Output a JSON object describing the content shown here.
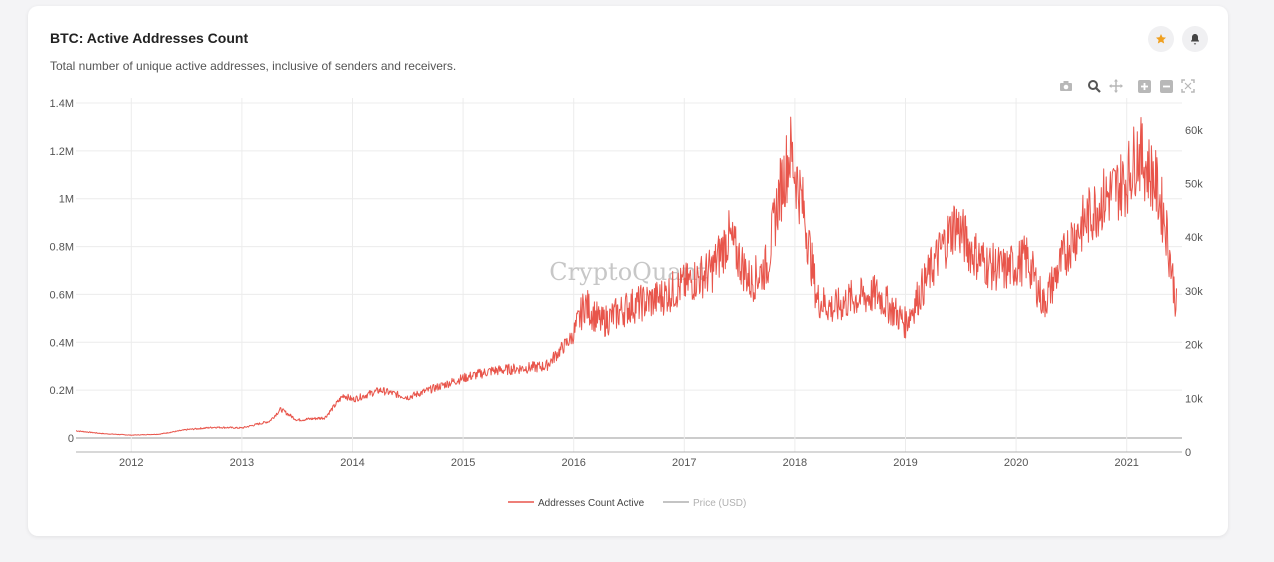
{
  "card": {
    "title": "BTC: Active Addresses Count",
    "subtitle": "Total number of unique active addresses, inclusive of senders and receivers."
  },
  "icons": {
    "star": "star-icon",
    "bell": "bell-icon",
    "modebar": [
      "camera-icon",
      "zoom-icon",
      "pan-icon",
      "zoom-in-icon",
      "zoom-out-icon",
      "autoscale-icon"
    ]
  },
  "colors": {
    "series": "#e8554b",
    "price": "#b0b0b0",
    "star": "#f0a020",
    "grid": "#ececec"
  },
  "watermark": "CryptoQuant",
  "chart_data": {
    "type": "line",
    "title": "BTC: Active Addresses Count",
    "xlabel": "",
    "ylabel": "",
    "x_ticks": [
      "2012",
      "2013",
      "2014",
      "2015",
      "2016",
      "2017",
      "2018",
      "2019",
      "2020",
      "2021"
    ],
    "y_ticks_left": [
      "0",
      "0.2M",
      "0.4M",
      "0.6M",
      "0.8M",
      "1M",
      "1.2M",
      "1.4M"
    ],
    "y_ticks_right": [
      "0",
      "10k",
      "20k",
      "30k",
      "40k",
      "50k",
      "60k"
    ],
    "ylim_left": [
      0,
      1400000
    ],
    "ylim_right": [
      0,
      65000
    ],
    "xlim": [
      2011.5,
      2021.5
    ],
    "grid": true,
    "legend_position": "bottom-center",
    "series": [
      {
        "name": "Addresses Count Active",
        "axis": "left",
        "points": [
          [
            2011.5,
            30000
          ],
          [
            2011.75,
            18000
          ],
          [
            2012.0,
            12000
          ],
          [
            2012.25,
            16000
          ],
          [
            2012.5,
            35000
          ],
          [
            2012.75,
            45000
          ],
          [
            2013.0,
            42000
          ],
          [
            2013.25,
            70000
          ],
          [
            2013.35,
            120000
          ],
          [
            2013.5,
            75000
          ],
          [
            2013.75,
            85000
          ],
          [
            2013.92,
            180000
          ],
          [
            2014.0,
            160000
          ],
          [
            2014.25,
            200000
          ],
          [
            2014.5,
            170000
          ],
          [
            2014.75,
            210000
          ],
          [
            2015.0,
            250000
          ],
          [
            2015.25,
            280000
          ],
          [
            2015.5,
            290000
          ],
          [
            2015.75,
            300000
          ],
          [
            2016.0,
            430000
          ],
          [
            2016.1,
            560000
          ],
          [
            2016.25,
            480000
          ],
          [
            2016.5,
            550000
          ],
          [
            2016.75,
            580000
          ],
          [
            2017.0,
            640000
          ],
          [
            2017.25,
            700000
          ],
          [
            2017.4,
            840000
          ],
          [
            2017.6,
            650000
          ],
          [
            2017.75,
            720000
          ],
          [
            2017.85,
            1000000
          ],
          [
            2017.96,
            1200000
          ],
          [
            2018.08,
            950000
          ],
          [
            2018.2,
            580000
          ],
          [
            2018.35,
            540000
          ],
          [
            2018.5,
            580000
          ],
          [
            2018.75,
            600000
          ],
          [
            2019.0,
            480000
          ],
          [
            2019.25,
            720000
          ],
          [
            2019.45,
            900000
          ],
          [
            2019.6,
            780000
          ],
          [
            2019.75,
            720000
          ],
          [
            2019.9,
            700000
          ],
          [
            2020.1,
            750000
          ],
          [
            2020.25,
            560000
          ],
          [
            2020.5,
            830000
          ],
          [
            2020.75,
            980000
          ],
          [
            2021.0,
            1080000
          ],
          [
            2021.1,
            1200000
          ],
          [
            2021.25,
            1080000
          ],
          [
            2021.35,
            900000
          ],
          [
            2021.45,
            550000
          ]
        ]
      },
      {
        "name": "Price (USD)",
        "axis": "right",
        "points": [
          [
            2011.5,
            0
          ],
          [
            2021.5,
            0
          ]
        ]
      }
    ]
  }
}
